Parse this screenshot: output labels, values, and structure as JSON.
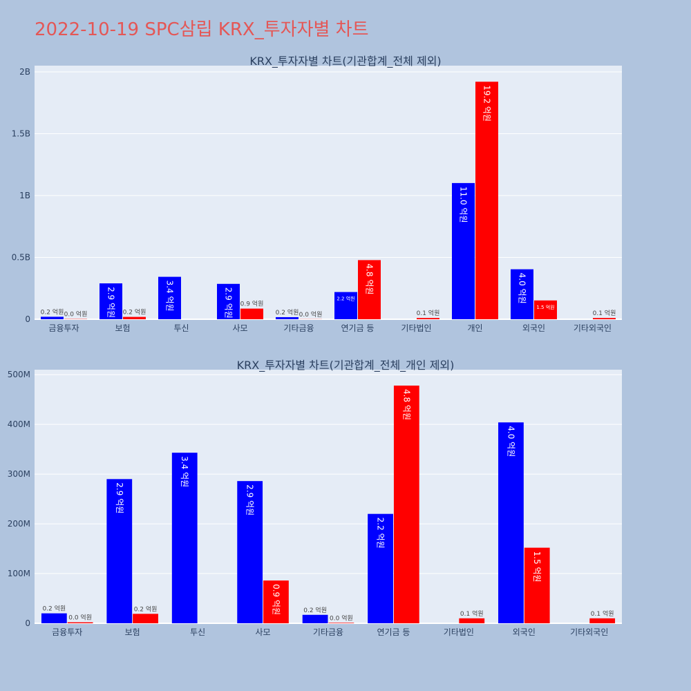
{
  "page": {
    "title": "2022-10-19 SPC삼립 KRX_투자자별 차트"
  },
  "colors": {
    "background": "#b0c4de",
    "plot_bg": "#e5ecf6",
    "buy": "#0000ff",
    "sell": "#ff0000",
    "title": "#e45756",
    "axis_text": "#2a3f5f"
  },
  "chart_data": [
    {
      "type": "bar",
      "title": "KRX_투자자별 차트(기관합계_전체 제외)",
      "categories": [
        "금융투자",
        "보험",
        "투신",
        "사모",
        "기타금융",
        "연기금 등",
        "기타법인",
        "개인",
        "외국인",
        "기타외국인"
      ],
      "ylim": [
        0,
        2050000000
      ],
      "yticks": [
        0,
        500000000,
        1000000000,
        1500000000,
        2000000000
      ],
      "ytick_labels": [
        "0",
        "0.5B",
        "1B",
        "1.5B",
        "2B"
      ],
      "grid": true,
      "series": [
        {
          "color": "#0000ff",
          "values": [
            20000000,
            290000000,
            343000000,
            286000000,
            17000000,
            220000000,
            null,
            1101000000,
            404000000,
            null
          ],
          "labels": [
            "0.2 억원",
            "2.9 억원",
            "3.4 억원",
            "2.9 억원",
            "0.2 억원",
            "2.2 억원",
            "",
            "11.0 억원",
            "4.0 억원",
            ""
          ]
        },
        {
          "color": "#ff0000",
          "values": [
            2000000,
            19000000,
            null,
            86000000,
            1000000,
            478000000,
            10000000,
            1920000000,
            152000000,
            10000000
          ],
          "labels": [
            "0.0 억원",
            "0.2 억원",
            "",
            "0.9 억원",
            "0.0 억원",
            "4.8 억원",
            "0.1 억원",
            "19.2 억원",
            "1.5 억원",
            "0.1 억원"
          ]
        }
      ]
    },
    {
      "type": "bar",
      "title": "KRX_투자자별 차트(기관합계_전체_개인 제외)",
      "categories": [
        "금융투자",
        "보험",
        "투신",
        "사모",
        "기타금융",
        "연기금 등",
        "기타법인",
        "외국인",
        "기타외국인"
      ],
      "ylim": [
        0,
        510000000
      ],
      "yticks": [
        0,
        100000000,
        200000000,
        300000000,
        400000000,
        500000000
      ],
      "ytick_labels": [
        "0",
        "100M",
        "200M",
        "300M",
        "400M",
        "500M"
      ],
      "grid": true,
      "series": [
        {
          "color": "#0000ff",
          "values": [
            20000000,
            290000000,
            343000000,
            286000000,
            17000000,
            220000000,
            null,
            404000000,
            null
          ],
          "labels": [
            "0.2 억원",
            "2.9 억원",
            "3.4 억원",
            "2.9 억원",
            "0.2 억원",
            "2.2 억원",
            "",
            "4.0 억원",
            ""
          ]
        },
        {
          "color": "#ff0000",
          "values": [
            2000000,
            19000000,
            null,
            86000000,
            1000000,
            478000000,
            10000000,
            152000000,
            10000000
          ],
          "labels": [
            "0.0 억원",
            "0.2 억원",
            "",
            "0.9 억원",
            "0.0 억원",
            "4.8 억원",
            "0.1 억원",
            "1.5 억원",
            "0.1 억원"
          ]
        }
      ]
    }
  ]
}
